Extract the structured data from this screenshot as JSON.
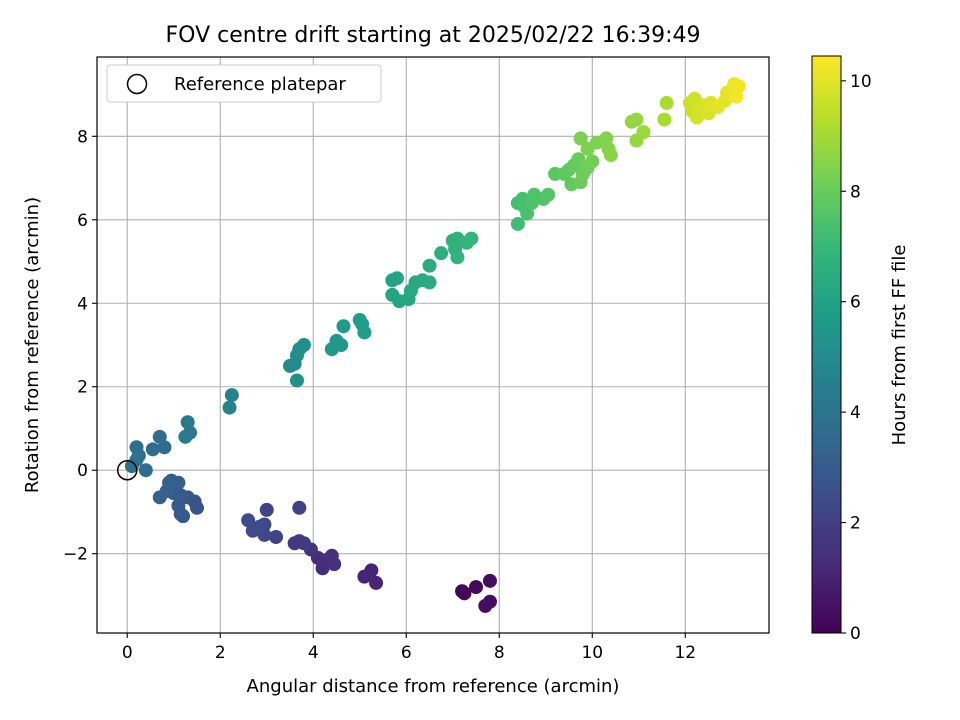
{
  "chart_data": {
    "type": "scatter",
    "title": "FOV centre drift starting at 2025/02/22 16:39:49",
    "xlabel": "Angular distance from reference (arcmin)",
    "ylabel": "Rotation from reference (arcmin)",
    "xlim": [
      -0.65,
      13.8
    ],
    "ylim": [
      -3.9,
      9.9
    ],
    "xticks": [
      0,
      2,
      4,
      6,
      8,
      10,
      12
    ],
    "yticks": [
      -2,
      0,
      2,
      4,
      6,
      8
    ],
    "grid": true,
    "legend": {
      "placement": "top-left",
      "entries": [
        {
          "label": "Reference platepar",
          "marker": "open-circle"
        }
      ]
    },
    "reference_point": {
      "x": 0,
      "y": 0
    },
    "colorbar": {
      "label": "Hours from first FF file",
      "range": [
        0,
        10.45
      ],
      "ticks": [
        0,
        2,
        4,
        6,
        8,
        10
      ],
      "colormap": [
        "#440154",
        "#482878",
        "#3e4989",
        "#31688e",
        "#26828e",
        "#1f9e89",
        "#35b779",
        "#6ece58",
        "#b5de2b",
        "#fde725"
      ]
    },
    "points": [
      {
        "x": 7.2,
        "y": -2.9,
        "c": 0.1
      },
      {
        "x": 7.25,
        "y": -2.95,
        "c": 0.15
      },
      {
        "x": 7.5,
        "y": -2.8,
        "c": 0.25
      },
      {
        "x": 7.8,
        "y": -2.65,
        "c": 0.3
      },
      {
        "x": 7.7,
        "y": -3.25,
        "c": 0.35
      },
      {
        "x": 7.8,
        "y": -3.15,
        "c": 0.4
      },
      {
        "x": 5.1,
        "y": -2.55,
        "c": 1.0
      },
      {
        "x": 5.25,
        "y": -2.4,
        "c": 1.05
      },
      {
        "x": 5.35,
        "y": -2.7,
        "c": 1.1
      },
      {
        "x": 4.1,
        "y": -2.1,
        "c": 1.3
      },
      {
        "x": 4.2,
        "y": -2.35,
        "c": 1.35
      },
      {
        "x": 4.3,
        "y": -2.15,
        "c": 1.4
      },
      {
        "x": 4.4,
        "y": -2.05,
        "c": 1.45
      },
      {
        "x": 4.45,
        "y": -2.25,
        "c": 1.5
      },
      {
        "x": 3.95,
        "y": -1.9,
        "c": 1.6
      },
      {
        "x": 3.7,
        "y": -1.7,
        "c": 1.7
      },
      {
        "x": 3.6,
        "y": -1.75,
        "c": 1.75
      },
      {
        "x": 3.8,
        "y": -1.75,
        "c": 1.8
      },
      {
        "x": 3.7,
        "y": -0.9,
        "c": 2.0
      },
      {
        "x": 3.2,
        "y": -1.6,
        "c": 2.1
      },
      {
        "x": 3.0,
        "y": -0.95,
        "c": 2.15
      },
      {
        "x": 2.95,
        "y": -1.3,
        "c": 2.2
      },
      {
        "x": 2.9,
        "y": -1.45,
        "c": 2.25
      },
      {
        "x": 2.95,
        "y": -1.55,
        "c": 2.3
      },
      {
        "x": 2.7,
        "y": -1.45,
        "c": 2.35
      },
      {
        "x": 2.6,
        "y": -1.2,
        "c": 2.4
      },
      {
        "x": 2.85,
        "y": -1.35,
        "c": 2.45
      },
      {
        "x": 1.45,
        "y": -0.75,
        "c": 2.7
      },
      {
        "x": 1.5,
        "y": -0.9,
        "c": 2.75
      },
      {
        "x": 1.3,
        "y": -0.65,
        "c": 2.8
      },
      {
        "x": 1.15,
        "y": -1.05,
        "c": 2.85
      },
      {
        "x": 1.2,
        "y": -1.1,
        "c": 2.9
      },
      {
        "x": 1.1,
        "y": -0.85,
        "c": 2.95
      },
      {
        "x": 1.15,
        "y": -0.6,
        "c": 3.0
      },
      {
        "x": 1.0,
        "y": -0.55,
        "c": 3.05
      },
      {
        "x": 1.1,
        "y": -0.3,
        "c": 3.1
      },
      {
        "x": 0.9,
        "y": -0.3,
        "c": 3.15
      },
      {
        "x": 0.95,
        "y": -0.25,
        "c": 3.2
      },
      {
        "x": 0.85,
        "y": -0.5,
        "c": 3.25
      },
      {
        "x": 0.7,
        "y": -0.65,
        "c": 3.3
      },
      {
        "x": 0.8,
        "y": 0.55,
        "c": 3.6
      },
      {
        "x": 0.7,
        "y": 0.8,
        "c": 3.65
      },
      {
        "x": 0.55,
        "y": 0.5,
        "c": 3.7
      },
      {
        "x": 0.4,
        "y": 0.0,
        "c": 3.75
      },
      {
        "x": 0.2,
        "y": 0.55,
        "c": 3.8
      },
      {
        "x": 0.25,
        "y": 0.35,
        "c": 3.85
      },
      {
        "x": 0.1,
        "y": 0.1,
        "c": 3.9
      },
      {
        "x": 0.2,
        "y": 0.25,
        "c": 3.95
      },
      {
        "x": 1.3,
        "y": 1.15,
        "c": 4.2
      },
      {
        "x": 1.35,
        "y": 0.9,
        "c": 4.25
      },
      {
        "x": 1.25,
        "y": 0.8,
        "c": 4.3
      },
      {
        "x": 2.25,
        "y": 1.8,
        "c": 4.6
      },
      {
        "x": 2.2,
        "y": 1.5,
        "c": 4.65
      },
      {
        "x": 3.5,
        "y": 2.5,
        "c": 5.0
      },
      {
        "x": 3.6,
        "y": 2.55,
        "c": 5.05
      },
      {
        "x": 3.65,
        "y": 2.75,
        "c": 5.1
      },
      {
        "x": 3.7,
        "y": 2.9,
        "c": 5.15
      },
      {
        "x": 3.8,
        "y": 3.0,
        "c": 5.2
      },
      {
        "x": 3.65,
        "y": 2.15,
        "c": 5.25
      },
      {
        "x": 4.5,
        "y": 3.1,
        "c": 5.5
      },
      {
        "x": 4.6,
        "y": 3.0,
        "c": 5.55
      },
      {
        "x": 4.4,
        "y": 2.9,
        "c": 5.6
      },
      {
        "x": 4.65,
        "y": 3.45,
        "c": 5.65
      },
      {
        "x": 5.0,
        "y": 3.6,
        "c": 5.75
      },
      {
        "x": 5.05,
        "y": 3.5,
        "c": 5.8
      },
      {
        "x": 5.1,
        "y": 3.3,
        "c": 5.85
      },
      {
        "x": 5.7,
        "y": 4.55,
        "c": 6.0
      },
      {
        "x": 5.8,
        "y": 4.6,
        "c": 6.05
      },
      {
        "x": 5.7,
        "y": 4.2,
        "c": 6.1
      },
      {
        "x": 5.85,
        "y": 4.05,
        "c": 6.15
      },
      {
        "x": 6.05,
        "y": 4.1,
        "c": 6.2
      },
      {
        "x": 6.1,
        "y": 4.3,
        "c": 6.25
      },
      {
        "x": 6.2,
        "y": 4.5,
        "c": 6.3
      },
      {
        "x": 6.35,
        "y": 4.55,
        "c": 6.35
      },
      {
        "x": 6.5,
        "y": 4.5,
        "c": 6.4
      },
      {
        "x": 6.5,
        "y": 4.9,
        "c": 6.45
      },
      {
        "x": 6.75,
        "y": 5.2,
        "c": 6.55
      },
      {
        "x": 7.0,
        "y": 5.5,
        "c": 6.65
      },
      {
        "x": 7.1,
        "y": 5.55,
        "c": 6.7
      },
      {
        "x": 7.05,
        "y": 5.3,
        "c": 6.75
      },
      {
        "x": 7.1,
        "y": 5.1,
        "c": 6.8
      },
      {
        "x": 7.3,
        "y": 5.45,
        "c": 6.85
      },
      {
        "x": 7.4,
        "y": 5.55,
        "c": 6.9
      },
      {
        "x": 8.4,
        "y": 5.9,
        "c": 7.2
      },
      {
        "x": 8.4,
        "y": 6.4,
        "c": 7.25
      },
      {
        "x": 8.5,
        "y": 6.5,
        "c": 7.3
      },
      {
        "x": 8.55,
        "y": 6.3,
        "c": 7.35
      },
      {
        "x": 8.6,
        "y": 6.15,
        "c": 7.4
      },
      {
        "x": 8.7,
        "y": 6.4,
        "c": 7.45
      },
      {
        "x": 8.75,
        "y": 6.6,
        "c": 7.5
      },
      {
        "x": 8.95,
        "y": 6.5,
        "c": 7.55
      },
      {
        "x": 9.05,
        "y": 6.6,
        "c": 7.6
      },
      {
        "x": 9.2,
        "y": 7.1,
        "c": 7.75
      },
      {
        "x": 9.4,
        "y": 7.1,
        "c": 7.8
      },
      {
        "x": 9.5,
        "y": 7.2,
        "c": 7.85
      },
      {
        "x": 9.55,
        "y": 6.85,
        "c": 7.9
      },
      {
        "x": 9.6,
        "y": 7.3,
        "c": 7.95
      },
      {
        "x": 9.7,
        "y": 7.45,
        "c": 8.0
      },
      {
        "x": 9.75,
        "y": 6.9,
        "c": 8.05
      },
      {
        "x": 9.8,
        "y": 7.1,
        "c": 8.1
      },
      {
        "x": 9.9,
        "y": 7.25,
        "c": 8.15
      },
      {
        "x": 10.0,
        "y": 7.4,
        "c": 8.2
      },
      {
        "x": 9.75,
        "y": 7.95,
        "c": 8.3
      },
      {
        "x": 9.9,
        "y": 7.7,
        "c": 8.35
      },
      {
        "x": 10.1,
        "y": 7.85,
        "c": 8.4
      },
      {
        "x": 10.3,
        "y": 7.95,
        "c": 8.45
      },
      {
        "x": 10.35,
        "y": 7.7,
        "c": 8.5
      },
      {
        "x": 10.4,
        "y": 7.55,
        "c": 8.55
      },
      {
        "x": 10.85,
        "y": 8.35,
        "c": 8.7
      },
      {
        "x": 10.95,
        "y": 8.4,
        "c": 8.75
      },
      {
        "x": 10.95,
        "y": 7.9,
        "c": 8.8
      },
      {
        "x": 11.1,
        "y": 8.1,
        "c": 8.85
      },
      {
        "x": 11.55,
        "y": 8.4,
        "c": 9.05
      },
      {
        "x": 11.6,
        "y": 8.8,
        "c": 9.1
      },
      {
        "x": 12.1,
        "y": 8.8,
        "c": 9.6
      },
      {
        "x": 12.15,
        "y": 8.6,
        "c": 9.65
      },
      {
        "x": 12.2,
        "y": 8.9,
        "c": 9.7
      },
      {
        "x": 12.25,
        "y": 8.45,
        "c": 9.75
      },
      {
        "x": 12.3,
        "y": 8.7,
        "c": 9.8
      },
      {
        "x": 12.35,
        "y": 8.75,
        "c": 9.85
      },
      {
        "x": 12.5,
        "y": 8.55,
        "c": 9.9
      },
      {
        "x": 12.55,
        "y": 8.8,
        "c": 9.95
      },
      {
        "x": 12.7,
        "y": 8.7,
        "c": 10.0
      },
      {
        "x": 12.85,
        "y": 8.85,
        "c": 10.05
      },
      {
        "x": 12.9,
        "y": 9.05,
        "c": 10.1
      },
      {
        "x": 13.05,
        "y": 9.25,
        "c": 10.2
      },
      {
        "x": 13.15,
        "y": 9.2,
        "c": 10.25
      },
      {
        "x": 13.1,
        "y": 8.95,
        "c": 10.3
      }
    ]
  }
}
